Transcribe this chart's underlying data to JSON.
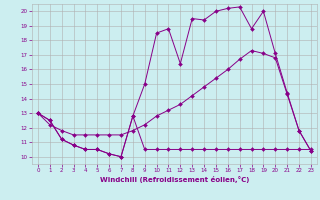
{
  "background_color": "#cceef0",
  "grid_color": "#b0b0b0",
  "line_color": "#880088",
  "xlabel": "Windchill (Refroidissement éolien,°C)",
  "xlabel_color": "#880088",
  "ylim": [
    9.5,
    20.5
  ],
  "xlim": [
    -0.5,
    23.5
  ],
  "yticks": [
    10,
    11,
    12,
    13,
    14,
    15,
    16,
    17,
    18,
    19,
    20
  ],
  "xticks": [
    0,
    1,
    2,
    3,
    4,
    5,
    6,
    7,
    8,
    9,
    10,
    11,
    12,
    13,
    14,
    15,
    16,
    17,
    18,
    19,
    20,
    21,
    22,
    23
  ],
  "line1_x": [
    0,
    1,
    2,
    3,
    4,
    5,
    6,
    7,
    8,
    9,
    10,
    11,
    12,
    13,
    14,
    15,
    16,
    17,
    18,
    19,
    20,
    21,
    22,
    23
  ],
  "line1_y": [
    13.0,
    12.5,
    11.2,
    10.8,
    10.5,
    10.5,
    10.2,
    10.0,
    12.8,
    10.5,
    10.5,
    10.5,
    10.5,
    10.5,
    10.5,
    10.5,
    10.5,
    10.5,
    10.5,
    10.5,
    10.5,
    10.5,
    10.5,
    10.5
  ],
  "line2_x": [
    0,
    1,
    2,
    3,
    4,
    5,
    6,
    7,
    8,
    9,
    10,
    11,
    12,
    13,
    14,
    15,
    16,
    17,
    18,
    19,
    20,
    21,
    22,
    23
  ],
  "line2_y": [
    13.0,
    12.5,
    11.2,
    10.8,
    10.5,
    10.5,
    10.2,
    10.0,
    12.8,
    15.0,
    18.5,
    18.8,
    16.4,
    19.5,
    19.4,
    20.0,
    20.2,
    20.3,
    18.8,
    20.0,
    17.1,
    14.4,
    11.8,
    10.4
  ],
  "line3_x": [
    0,
    1,
    2,
    3,
    4,
    5,
    6,
    7,
    8,
    9,
    10,
    11,
    12,
    13,
    14,
    15,
    16,
    17,
    18,
    19,
    20,
    21,
    22,
    23
  ],
  "line3_y": [
    13.0,
    12.2,
    11.8,
    11.5,
    11.5,
    11.5,
    11.5,
    11.5,
    11.8,
    12.2,
    12.8,
    13.2,
    13.6,
    14.2,
    14.8,
    15.4,
    16.0,
    16.7,
    17.3,
    17.1,
    16.8,
    14.3,
    11.8,
    10.4
  ]
}
